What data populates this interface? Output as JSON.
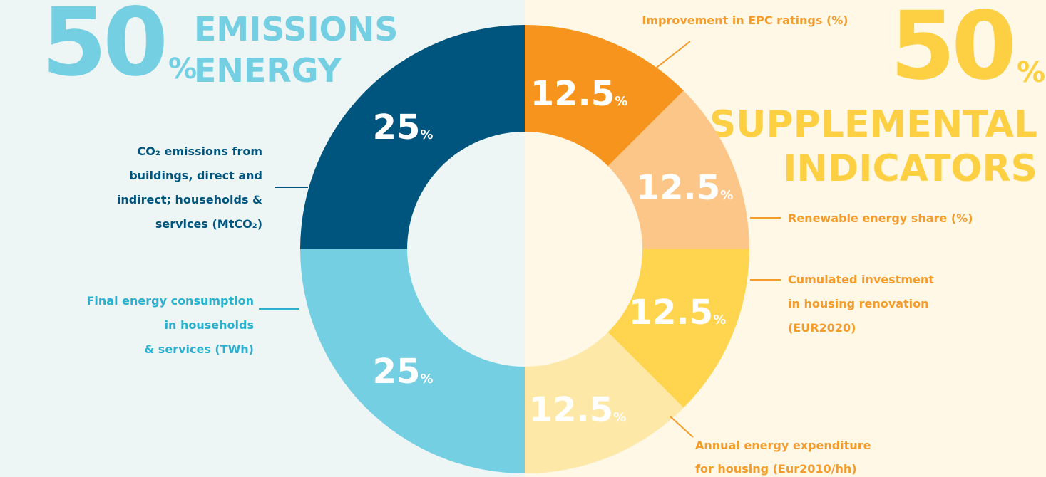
{
  "chart_data": {
    "type": "donut",
    "unit": "%",
    "groups": [
      {
        "value": 50,
        "title": [
          "EMISSIONS",
          "ENERGY"
        ],
        "color": "#74cfe2"
      },
      {
        "value": 50,
        "title": [
          "SUPPLEMENTAL",
          "INDICATORS"
        ],
        "color": "#fdd044"
      }
    ],
    "categories": [
      [
        "Improvement in EPC ratings (%)"
      ],
      [
        "Renewable energy share (%)"
      ],
      [
        "Cumulated investment",
        "in housing renovation",
        "(EUR2020)"
      ],
      [
        "Annual energy expenditure",
        "for housing (Eur2010/hh)"
      ],
      [
        "Final energy consumption",
        "in households",
        "& services (TWh)"
      ],
      [
        "CO₂ emissions from",
        "buildings, direct and",
        "indirect; households &",
        "services (MtCO₂)"
      ]
    ],
    "values": [
      12.5,
      12.5,
      12.5,
      12.5,
      25,
      25
    ],
    "colors": [
      "#f7941d",
      "#fdc689",
      "#ffd54f",
      "#fde8a8",
      "#74cfe2",
      "#00557f"
    ],
    "label_colors": [
      "#f39c2b",
      "#f39c2b",
      "#f39c2b",
      "#f39c2b",
      "#2bb0d0",
      "#00557f"
    ]
  }
}
